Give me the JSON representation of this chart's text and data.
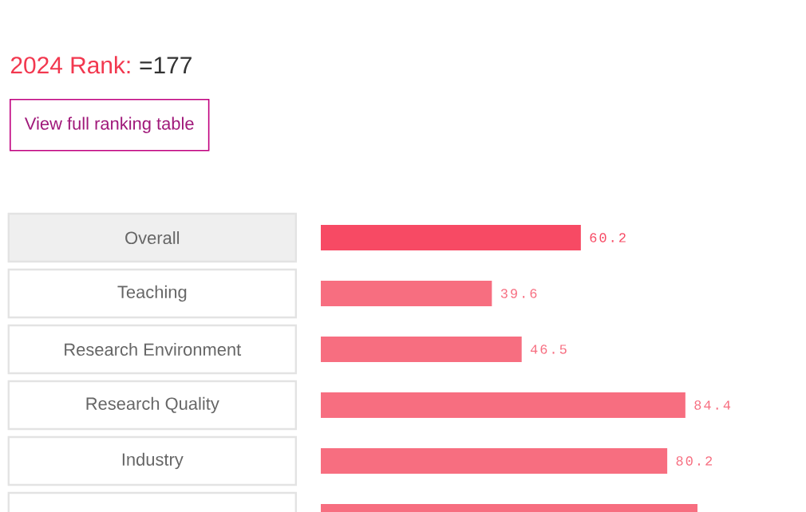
{
  "chart_data": {
    "type": "bar",
    "orientation": "horizontal",
    "title": "2024 Rank:",
    "subtitle": "=177",
    "annotations": [
      "View full ranking table"
    ],
    "categories": [
      "Overall",
      "Teaching",
      "Research Environment",
      "Research Quality",
      "Industry",
      null
    ],
    "values": [
      60.2,
      39.6,
      46.5,
      84.4,
      80.2,
      87.2
    ],
    "colors": [
      "#f74a64",
      "#f76e80",
      "#f76e80",
      "#f76e80",
      "#f76e80",
      "#f76e80"
    ],
    "value_labels": [
      "60.2",
      "39.6",
      "46.5",
      "84.4",
      "80.2",
      null
    ]
  }
}
